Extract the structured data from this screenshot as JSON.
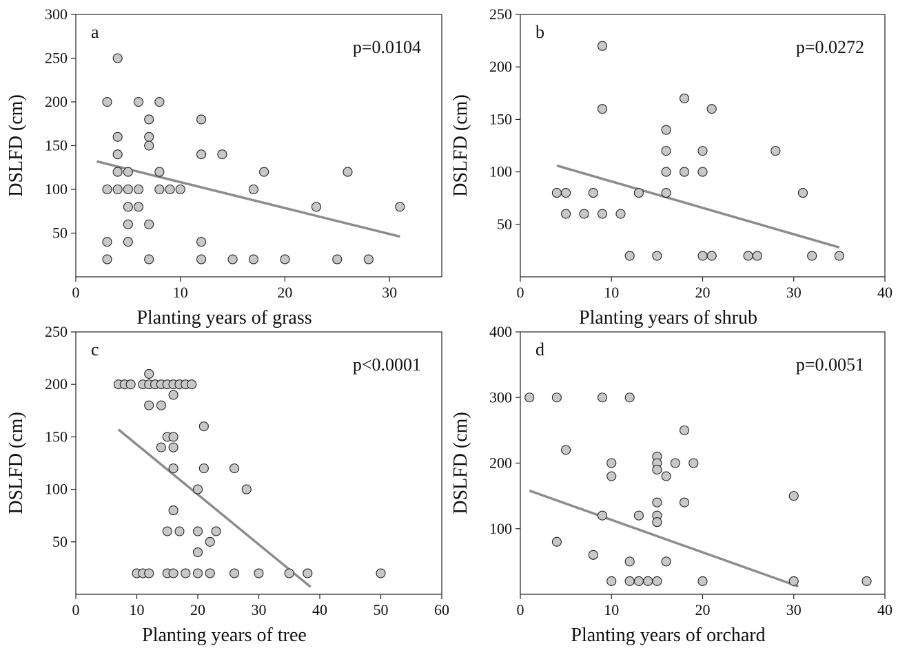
{
  "chart_data": [
    {
      "type": "scatter",
      "panel_label": "a",
      "annotation": "p=0.0104",
      "xlabel": "Planting years of grass",
      "ylabel": "DSLFD (cm)",
      "xlim": [
        0,
        35
      ],
      "ylim": [
        0,
        300
      ],
      "xticks": [
        0,
        10,
        20,
        30
      ],
      "yticks": [
        50,
        100,
        150,
        200,
        250,
        300
      ],
      "points": [
        {
          "x": 3,
          "y": 200
        },
        {
          "x": 3,
          "y": 100
        },
        {
          "x": 3,
          "y": 40
        },
        {
          "x": 3,
          "y": 20
        },
        {
          "x": 4,
          "y": 250
        },
        {
          "x": 4,
          "y": 160
        },
        {
          "x": 4,
          "y": 140
        },
        {
          "x": 4,
          "y": 120
        },
        {
          "x": 4,
          "y": 100
        },
        {
          "x": 5,
          "y": 120
        },
        {
          "x": 5,
          "y": 100
        },
        {
          "x": 5,
          "y": 80
        },
        {
          "x": 5,
          "y": 60
        },
        {
          "x": 5,
          "y": 40
        },
        {
          "x": 6,
          "y": 200
        },
        {
          "x": 6,
          "y": 100
        },
        {
          "x": 6,
          "y": 80
        },
        {
          "x": 7,
          "y": 180
        },
        {
          "x": 7,
          "y": 160
        },
        {
          "x": 7,
          "y": 150
        },
        {
          "x": 7,
          "y": 60
        },
        {
          "x": 7,
          "y": 20
        },
        {
          "x": 8,
          "y": 200
        },
        {
          "x": 8,
          "y": 120
        },
        {
          "x": 8,
          "y": 100
        },
        {
          "x": 9,
          "y": 100
        },
        {
          "x": 10,
          "y": 100
        },
        {
          "x": 12,
          "y": 180
        },
        {
          "x": 12,
          "y": 140
        },
        {
          "x": 12,
          "y": 40
        },
        {
          "x": 12,
          "y": 20
        },
        {
          "x": 14,
          "y": 140
        },
        {
          "x": 15,
          "y": 20
        },
        {
          "x": 17,
          "y": 100
        },
        {
          "x": 17,
          "y": 20
        },
        {
          "x": 18,
          "y": 120
        },
        {
          "x": 20,
          "y": 20
        },
        {
          "x": 23,
          "y": 80
        },
        {
          "x": 25,
          "y": 20
        },
        {
          "x": 26,
          "y": 120
        },
        {
          "x": 28,
          "y": 20
        },
        {
          "x": 31,
          "y": 80
        }
      ],
      "fit_line": [
        {
          "x": 2,
          "y": 132
        },
        {
          "x": 31,
          "y": 46
        }
      ]
    },
    {
      "type": "scatter",
      "panel_label": "b",
      "annotation": "p=0.0272",
      "xlabel": "Planting years of shrub",
      "ylabel": "DSLFD (cm)",
      "xlim": [
        0,
        40
      ],
      "ylim": [
        0,
        250
      ],
      "xticks": [
        0,
        10,
        20,
        30,
        40
      ],
      "yticks": [
        50,
        100,
        150,
        200,
        250
      ],
      "points": [
        {
          "x": 4,
          "y": 80
        },
        {
          "x": 5,
          "y": 80
        },
        {
          "x": 5,
          "y": 60
        },
        {
          "x": 7,
          "y": 60
        },
        {
          "x": 8,
          "y": 80
        },
        {
          "x": 9,
          "y": 220
        },
        {
          "x": 9,
          "y": 160
        },
        {
          "x": 9,
          "y": 60
        },
        {
          "x": 11,
          "y": 60
        },
        {
          "x": 12,
          "y": 20
        },
        {
          "x": 13,
          "y": 80
        },
        {
          "x": 15,
          "y": 20
        },
        {
          "x": 16,
          "y": 140
        },
        {
          "x": 16,
          "y": 120
        },
        {
          "x": 16,
          "y": 100
        },
        {
          "x": 16,
          "y": 80
        },
        {
          "x": 18,
          "y": 170
        },
        {
          "x": 18,
          "y": 100
        },
        {
          "x": 20,
          "y": 120
        },
        {
          "x": 20,
          "y": 100
        },
        {
          "x": 20,
          "y": 20
        },
        {
          "x": 21,
          "y": 160
        },
        {
          "x": 21,
          "y": 20
        },
        {
          "x": 25,
          "y": 20
        },
        {
          "x": 26,
          "y": 20
        },
        {
          "x": 28,
          "y": 120
        },
        {
          "x": 31,
          "y": 80
        },
        {
          "x": 32,
          "y": 20
        },
        {
          "x": 35,
          "y": 20
        }
      ],
      "fit_line": [
        {
          "x": 4,
          "y": 106
        },
        {
          "x": 35,
          "y": 28
        }
      ]
    },
    {
      "type": "scatter",
      "panel_label": "c",
      "annotation": "p<0.0001",
      "xlabel": "Planting years of tree",
      "ylabel": "DSLFD (cm)",
      "xlim": [
        0,
        60
      ],
      "ylim": [
        0,
        250
      ],
      "xticks": [
        0,
        10,
        20,
        30,
        40,
        50,
        60
      ],
      "yticks": [
        50,
        100,
        150,
        200,
        250
      ],
      "points": [
        {
          "x": 7,
          "y": 200
        },
        {
          "x": 8,
          "y": 200
        },
        {
          "x": 9,
          "y": 200
        },
        {
          "x": 10,
          "y": 20
        },
        {
          "x": 11,
          "y": 200
        },
        {
          "x": 11,
          "y": 20
        },
        {
          "x": 12,
          "y": 210
        },
        {
          "x": 12,
          "y": 200
        },
        {
          "x": 12,
          "y": 180
        },
        {
          "x": 12,
          "y": 20
        },
        {
          "x": 13,
          "y": 200
        },
        {
          "x": 14,
          "y": 200
        },
        {
          "x": 14,
          "y": 180
        },
        {
          "x": 14,
          "y": 140
        },
        {
          "x": 15,
          "y": 200
        },
        {
          "x": 15,
          "y": 150
        },
        {
          "x": 15,
          "y": 60
        },
        {
          "x": 15,
          "y": 20
        },
        {
          "x": 16,
          "y": 200
        },
        {
          "x": 16,
          "y": 190
        },
        {
          "x": 16,
          "y": 150
        },
        {
          "x": 16,
          "y": 140
        },
        {
          "x": 16,
          "y": 120
        },
        {
          "x": 16,
          "y": 80
        },
        {
          "x": 16,
          "y": 20
        },
        {
          "x": 17,
          "y": 200
        },
        {
          "x": 17,
          "y": 60
        },
        {
          "x": 18,
          "y": 200
        },
        {
          "x": 18,
          "y": 20
        },
        {
          "x": 19,
          "y": 200
        },
        {
          "x": 20,
          "y": 100
        },
        {
          "x": 20,
          "y": 60
        },
        {
          "x": 20,
          "y": 40
        },
        {
          "x": 20,
          "y": 20
        },
        {
          "x": 21,
          "y": 160
        },
        {
          "x": 21,
          "y": 120
        },
        {
          "x": 22,
          "y": 50
        },
        {
          "x": 22,
          "y": 20
        },
        {
          "x": 23,
          "y": 60
        },
        {
          "x": 26,
          "y": 120
        },
        {
          "x": 26,
          "y": 20
        },
        {
          "x": 28,
          "y": 100
        },
        {
          "x": 30,
          "y": 20
        },
        {
          "x": 35,
          "y": 20
        },
        {
          "x": 38,
          "y": 20
        },
        {
          "x": 50,
          "y": 20
        }
      ],
      "fit_line": [
        {
          "x": 7,
          "y": 157
        },
        {
          "x": 38.5,
          "y": 7
        }
      ]
    },
    {
      "type": "scatter",
      "panel_label": "d",
      "annotation": "p=0.0051",
      "xlabel": "Planting years of orchard",
      "ylabel": "DSLFD (cm)",
      "xlim": [
        0,
        40
      ],
      "ylim": [
        0,
        400
      ],
      "xticks": [
        0,
        10,
        20,
        30,
        40
      ],
      "yticks": [
        100,
        200,
        300,
        400
      ],
      "points": [
        {
          "x": 1,
          "y": 300
        },
        {
          "x": 4,
          "y": 300
        },
        {
          "x": 4,
          "y": 80
        },
        {
          "x": 5,
          "y": 220
        },
        {
          "x": 8,
          "y": 60
        },
        {
          "x": 9,
          "y": 300
        },
        {
          "x": 9,
          "y": 120
        },
        {
          "x": 10,
          "y": 200
        },
        {
          "x": 10,
          "y": 180
        },
        {
          "x": 10,
          "y": 20
        },
        {
          "x": 12,
          "y": 300
        },
        {
          "x": 12,
          "y": 50
        },
        {
          "x": 12,
          "y": 20
        },
        {
          "x": 13,
          "y": 120
        },
        {
          "x": 13,
          "y": 20
        },
        {
          "x": 14,
          "y": 20
        },
        {
          "x": 15,
          "y": 210
        },
        {
          "x": 15,
          "y": 200
        },
        {
          "x": 15,
          "y": 190
        },
        {
          "x": 15,
          "y": 140
        },
        {
          "x": 15,
          "y": 120
        },
        {
          "x": 15,
          "y": 110
        },
        {
          "x": 15,
          "y": 20
        },
        {
          "x": 16,
          "y": 180
        },
        {
          "x": 16,
          "y": 50
        },
        {
          "x": 17,
          "y": 200
        },
        {
          "x": 18,
          "y": 250
        },
        {
          "x": 18,
          "y": 140
        },
        {
          "x": 19,
          "y": 200
        },
        {
          "x": 20,
          "y": 20
        },
        {
          "x": 30,
          "y": 150
        },
        {
          "x": 30,
          "y": 20
        },
        {
          "x": 38,
          "y": 20
        }
      ],
      "fit_line": [
        {
          "x": 1,
          "y": 158
        },
        {
          "x": 30.5,
          "y": 12
        }
      ]
    }
  ],
  "colors": {
    "marker_fill": "#c8c8c8",
    "marker_stroke": "#222222",
    "fit_line": "#8c8c8c",
    "axis": "#222222"
  }
}
